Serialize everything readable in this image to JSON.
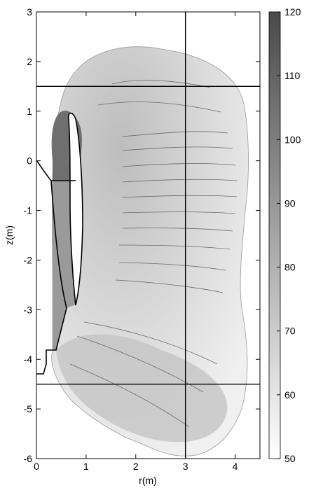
{
  "chart_data": {
    "type": "heatmap",
    "title": "",
    "xlabel": "r(m)",
    "ylabel": "z(m)",
    "xlim": [
      0,
      4.5
    ],
    "ylim": [
      -6,
      3
    ],
    "x_ticks": [
      "0",
      "1",
      "2",
      "3",
      "4"
    ],
    "y_ticks": [
      "3",
      "2",
      "1",
      "0",
      "-1",
      "-2",
      "-3",
      "-4",
      "-5",
      "-6"
    ],
    "colorbar": {
      "min": 50,
      "max": 120,
      "ticks": [
        "120",
        "110",
        "100",
        "90",
        "80",
        "70",
        "60",
        "50"
      ],
      "color_low": "#ffffff",
      "color_high": "#4a4a4a"
    },
    "reference_lines": {
      "vertical_r": [
        3
      ],
      "horizontal_z": [
        1.5,
        -4.5
      ]
    },
    "grid": false,
    "colors": {
      "field_light": "#ececec",
      "field_mid": "#c8c8c8",
      "field_dark": "#6e6e6e",
      "contour": "#555555"
    }
  }
}
